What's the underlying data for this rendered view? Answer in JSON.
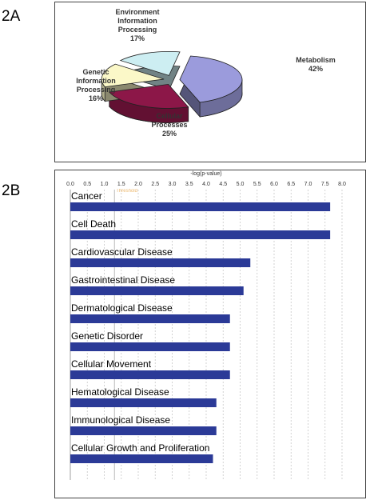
{
  "chart_data": [
    {
      "type": "pie",
      "panel_label": "2A",
      "categories": [
        "Metabolism",
        "Cellular Processes",
        "Genetic Information Processing",
        "Environment Information Processing"
      ],
      "values": [
        42,
        25,
        16,
        17
      ],
      "value_labels": [
        "42%",
        "25%",
        "16%",
        "17%"
      ],
      "colors": [
        "#9b9bdc",
        "#8c1748",
        "#fbf8c8",
        "#cdeef2"
      ]
    },
    {
      "type": "bar",
      "orientation": "horizontal",
      "panel_label": "2B",
      "x_label": "-log(p-value)",
      "categories": [
        "Cancer",
        "Cell Death",
        "Cardiovascular Disease",
        "Gastrointestinal Disease",
        "Dermatological Disease",
        "Genetic Disorder",
        "Cellular Movement",
        "Hematological Disease",
        "Immunological Disease",
        "Cellular Growth and Proliferation"
      ],
      "values": [
        7.65,
        7.65,
        5.3,
        5.1,
        4.7,
        4.7,
        4.7,
        4.3,
        4.3,
        4.2
      ],
      "color": "#2b3a97",
      "xlim": [
        0,
        8
      ],
      "xticks": [
        {
          "value": 0,
          "label": "0.0"
        },
        0.5,
        {
          "value": 1,
          "label": "1.0"
        },
        1.5,
        {
          "value": 2,
          "label": "2.0"
        },
        2.5,
        {
          "value": 3,
          "label": "3.0"
        },
        3.5,
        {
          "value": 4,
          "label": "4.0"
        },
        4.5,
        {
          "value": 5,
          "label": "5.0"
        },
        5.5,
        {
          "value": 6,
          "label": "6.0"
        },
        6.5,
        {
          "value": 7,
          "label": "7.0"
        },
        7.5,
        {
          "value": 8,
          "label": "8.0"
        }
      ],
      "grid": true,
      "annotations": [
        {
          "text": "Threshold",
          "x": 1.3
        }
      ]
    }
  ]
}
